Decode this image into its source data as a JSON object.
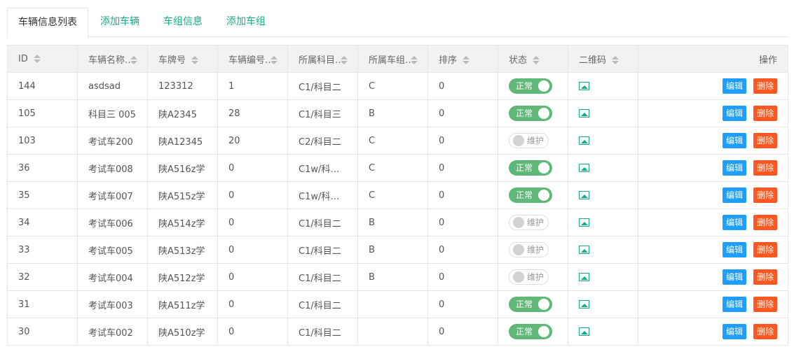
{
  "tabs": [
    "车辆信息列表",
    "添加车辆",
    "车组信息",
    "添加车组"
  ],
  "columns": [
    "ID",
    "车辆名称",
    "车牌号",
    "车辆编号",
    "所属科目",
    "所属车组",
    "排序",
    "状态",
    "二维码",
    "操作"
  ],
  "actions": {
    "edit": "编辑",
    "delete": "删除"
  },
  "status_labels": {
    "on": "正常",
    "off": "维护"
  },
  "rows": [
    [
      "144",
      "asdsad",
      "123312",
      "1",
      "C1/科目二",
      "C",
      "0",
      true
    ],
    [
      "105",
      "科目三 005",
      "陕A2345",
      "28",
      "C1/科目三",
      "B",
      "0",
      true
    ],
    [
      "103",
      "考试车200",
      "陕A12345",
      "20",
      "C2/科目二",
      "C",
      "0",
      false
    ],
    [
      "36",
      "考试车008",
      "陕A516z学",
      "0",
      "C1w/科目...",
      "C",
      "0",
      true
    ],
    [
      "35",
      "考试车007",
      "陕A515z学",
      "0",
      "C1w/科目...",
      "C",
      "0",
      true
    ],
    [
      "34",
      "考试车006",
      "陕A514z学",
      "0",
      "C1/科目二",
      "B",
      "0",
      false
    ],
    [
      "33",
      "考试车005",
      "陕A513z学",
      "0",
      "C1/科目二",
      "B",
      "0",
      false
    ],
    [
      "32",
      "考试车004",
      "陕A512z学",
      "0",
      "C1/科目二",
      "B",
      "0",
      false
    ],
    [
      "31",
      "考试车003",
      "陕A511z学",
      "0",
      "C1/科目二",
      "",
      "0",
      true
    ],
    [
      "30",
      "考试车002",
      "陕A510z学",
      "0",
      "C1/科目二",
      "",
      "0",
      true
    ]
  ]
}
